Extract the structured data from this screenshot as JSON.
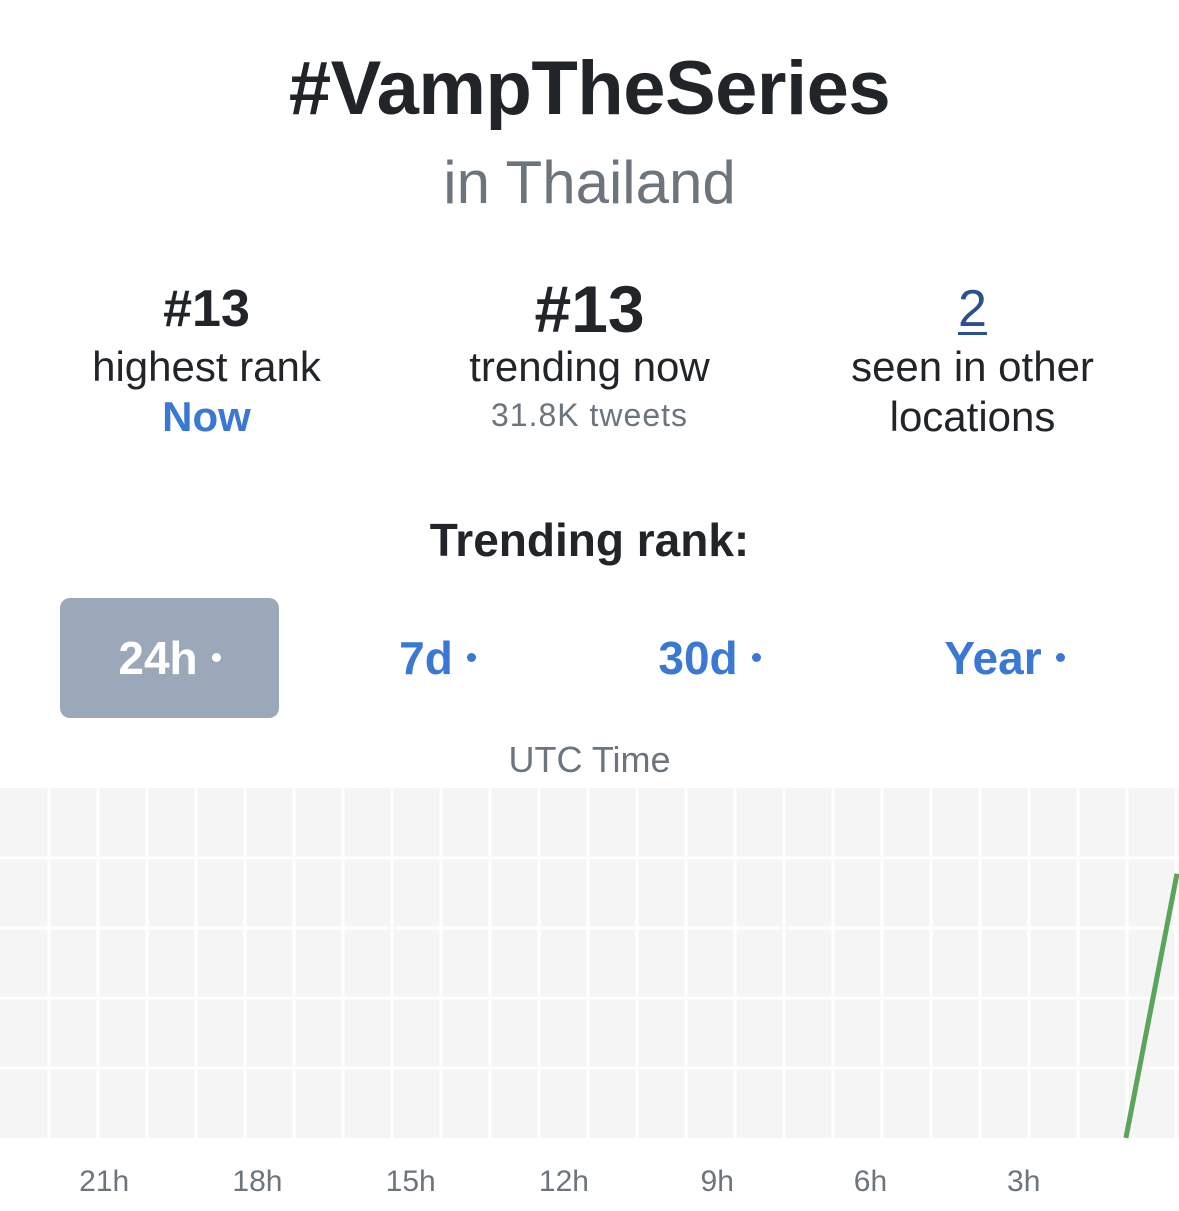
{
  "header": {
    "title": "#VampTheSeries",
    "subtitle": "in Thailand"
  },
  "stats": {
    "highest": {
      "value": "#13",
      "label": "highest rank",
      "when": "Now"
    },
    "current": {
      "value": "#13",
      "label": "trending now",
      "tweets": "31.8K tweets"
    },
    "other": {
      "value": "2",
      "label_line1": "seen in other",
      "label_line2": "locations"
    }
  },
  "section_title": "Trending rank:",
  "tabs": [
    {
      "label": "24h",
      "active": true
    },
    {
      "label": "7d",
      "active": false
    },
    {
      "label": "30d",
      "active": false
    },
    {
      "label": "Year",
      "active": false
    }
  ],
  "colors": {
    "accent": "#3a78d4",
    "active_tab": "#9ba8ba",
    "line": "#5aa55a",
    "grid_bg": "#f5f5f5"
  },
  "chart_data": {
    "type": "line",
    "xlabel": "UTC Time",
    "x_ticks": [
      "21h",
      "18h",
      "15h",
      "12h",
      "9h",
      "6h",
      "3h"
    ],
    "x_range_hours_ago": [
      23,
      0
    ],
    "series": [
      {
        "points": [
          {
            "hours_ago": 1,
            "rank": 50
          },
          {
            "hours_ago": 0,
            "rank": 13
          }
        ]
      }
    ],
    "y_invert": true,
    "grid": true
  }
}
